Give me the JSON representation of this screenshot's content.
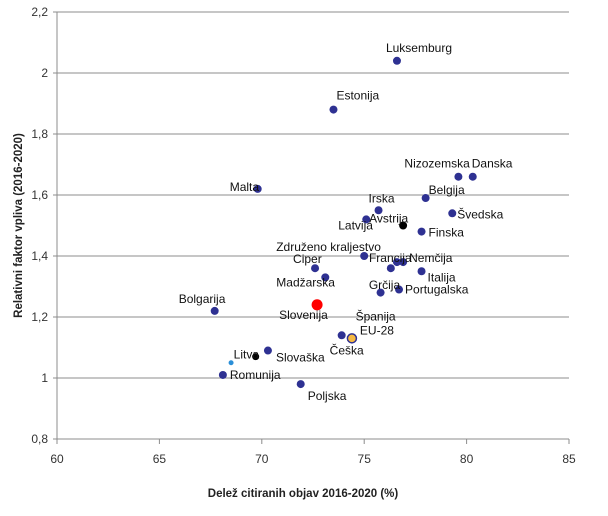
{
  "chart_data": {
    "type": "scatter",
    "xlabel": "Delež citiranih objav  2016-2020 (%)",
    "ylabel": "Relativni faktor vpliva  (2016-2020)",
    "xlim": [
      60,
      85
    ],
    "ylim": [
      0.8,
      2.2
    ],
    "xticks": [
      "60",
      "65",
      "70",
      "75",
      "80",
      "85"
    ],
    "yticks": [
      "0,8",
      "1",
      "1,2",
      "1,4",
      "1,6",
      "1,8",
      "2",
      "2,2"
    ],
    "grid": "horizontal",
    "colors": {
      "default": "#2e3192",
      "highlight": "#ff0000",
      "eu": "#f5b942",
      "eu_label": "#f0a830",
      "dark": "#000000",
      "small": "#2a8fd8"
    },
    "points": [
      {
        "label": "Luksemburg",
        "x": 76.6,
        "y": 2.04
      },
      {
        "label": "Estonija",
        "x": 73.5,
        "y": 1.88
      },
      {
        "label": "Nizozemska",
        "x": 79.6,
        "y": 1.66
      },
      {
        "label": "Danska",
        "x": 80.3,
        "y": 1.66
      },
      {
        "label": "Malta",
        "x": 69.8,
        "y": 1.62
      },
      {
        "label": "Belgija",
        "x": 78.0,
        "y": 1.59
      },
      {
        "label": "Irska",
        "x": 75.7,
        "y": 1.55
      },
      {
        "label": "Švedska",
        "x": 79.3,
        "y": 1.54
      },
      {
        "label": "Latvija",
        "x": 75.1,
        "y": 1.52
      },
      {
        "label": "Avstrija",
        "x": 76.9,
        "y": 1.5
      },
      {
        "label": "Finska",
        "x": 77.8,
        "y": 1.48
      },
      {
        "label": "Združeno kraljestvo",
        "x": 75.0,
        "y": 1.4
      },
      {
        "label": "Francija",
        "x": 76.6,
        "y": 1.38
      },
      {
        "label": "Nemčija",
        "x": 76.9,
        "y": 1.38
      },
      {
        "label": "Ciper",
        "x": 72.6,
        "y": 1.36
      },
      {
        "label": "Italija",
        "x": 77.8,
        "y": 1.35
      },
      {
        "label": "Madžarska",
        "x": 73.1,
        "y": 1.33
      },
      {
        "label": "Grčija",
        "x": 76.3,
        "y": 1.36
      },
      {
        "label": "Portugalska",
        "x": 76.7,
        "y": 1.29
      },
      {
        "label": "Španija",
        "x": 75.8,
        "y": 1.28
      },
      {
        "label": "Slovenija",
        "x": 72.7,
        "y": 1.24
      },
      {
        "label": "Bolgarija",
        "x": 67.7,
        "y": 1.22
      },
      {
        "label": "EU-28",
        "x": 74.4,
        "y": 1.13
      },
      {
        "label": "Češka",
        "x": 73.9,
        "y": 1.14
      },
      {
        "label": "Litva",
        "x": 69.7,
        "y": 1.07
      },
      {
        "label": "Slovaška",
        "x": 70.3,
        "y": 1.09
      },
      {
        "label": "Romunija",
        "x": 68.1,
        "y": 1.01
      },
      {
        "label": "Poljska",
        "x": 71.9,
        "y": 0.98
      }
    ],
    "unlabeled_points": [
      {
        "x": 68.5,
        "y": 1.05
      }
    ]
  }
}
